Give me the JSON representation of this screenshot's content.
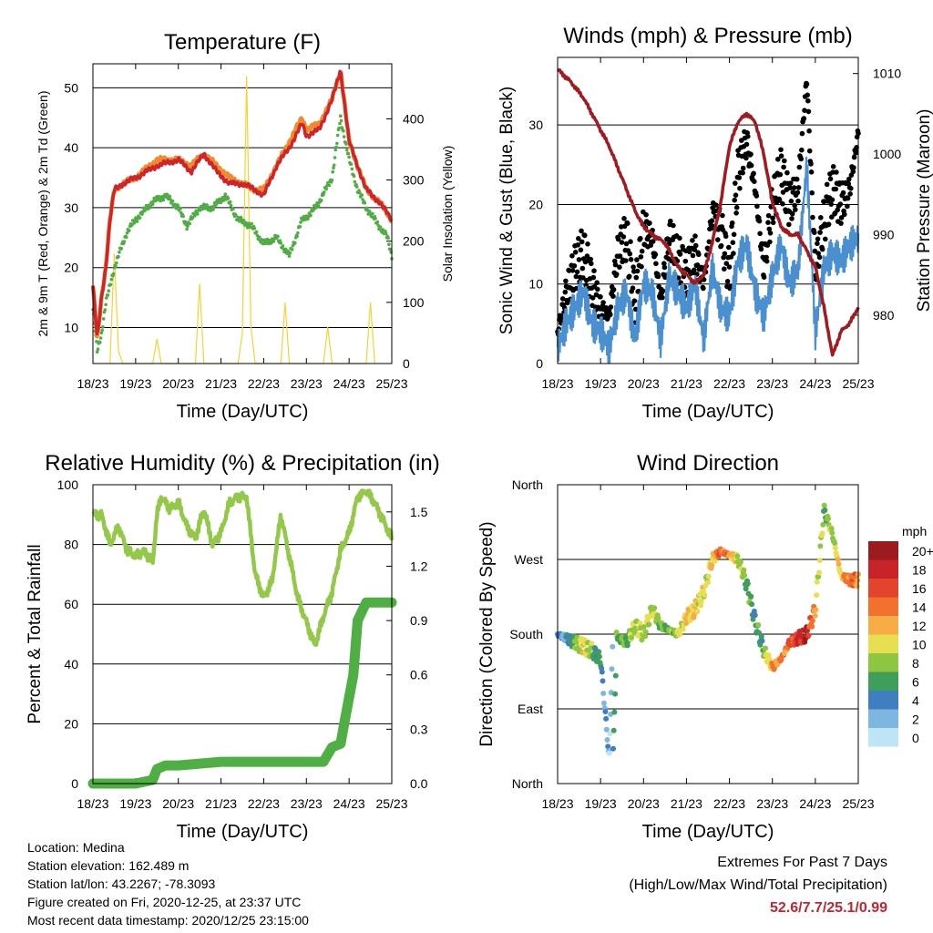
{
  "panels": {
    "temperature": {
      "title": "Temperature (F)",
      "ylabel": "2m & 9m T (Red, Orange) & 2m Td (Green)",
      "y2label": "Solar Insolation (Yellow)",
      "xlabel": "Time (Day/UTC)"
    },
    "winds": {
      "title": "Winds (mph) & Pressure (mb)",
      "ylabel": "Sonic Wind & Gust (Blue, Black)",
      "y2label": "Station Pressure (Maroon)",
      "xlabel": "Time (Day/UTC)"
    },
    "humidity": {
      "title": "Relative Humidity (%) & Precipitation (in)",
      "ylabel": "Percent & Total Rainfall",
      "xlabel": "Time (Day/UTC)"
    },
    "direction": {
      "title": "Wind Direction",
      "ylabel": "Direction (Colored By Speed)",
      "xlabel": "Time (Day/UTC)",
      "legend_title": "mph"
    }
  },
  "colors": {
    "temp_2m": "#d0242b",
    "temp_9m": "#f08a2c",
    "dewpoint": "#4fad44",
    "solar": "#f5d235",
    "wind": "#4a8fcf",
    "gust": "#000000",
    "pressure": "#a01a1f",
    "rh": "#94c849",
    "precip": "#4fae44"
  },
  "speed_legend": [
    {
      "label": "20+",
      "color": "#9b1b1e"
    },
    {
      "label": "18",
      "color": "#c9232a"
    },
    {
      "label": "16",
      "color": "#e4442b"
    },
    {
      "label": "14",
      "color": "#f2712f"
    },
    {
      "label": "12",
      "color": "#f8ac45"
    },
    {
      "label": "10",
      "color": "#e8df50"
    },
    {
      "label": "8",
      "color": "#8ec63f"
    },
    {
      "label": "6",
      "color": "#3e9e5a"
    },
    {
      "label": "4",
      "color": "#3f7ec1"
    },
    {
      "label": "2",
      "color": "#7eb6e2"
    },
    {
      "label": "0",
      "color": "#bfe4f5"
    }
  ],
  "footer": {
    "location": "Location: Medina",
    "elevation": "Station elevation: 162.489 m",
    "latlon": "Station lat/lon: 43.2267; -78.3093",
    "created": "Figure created on Fri, 2020-12-25, at 23:37 UTC",
    "recent": "Most recent data timestamp: 2020/12/25 23:15:00",
    "extremes_title": "Extremes For Past 7 Days",
    "extremes_sub": "(High/Low/Max Wind/Total Precipitation)",
    "extremes_values": "52.6/7.7/25.1/0.99"
  },
  "chart_data": [
    {
      "type": "line",
      "title": "Temperature (F)",
      "xlabel": "Time (Day/UTC)",
      "ylabel": "2m & 9m T (Red, Orange) & 2m Td (Green)",
      "y2label": "Solar Insolation (Yellow)",
      "x_ticks": [
        "18/23",
        "19/23",
        "20/23",
        "21/23",
        "22/23",
        "23/23",
        "24/23",
        "25/23"
      ],
      "y_ticks": [
        10,
        20,
        30,
        40,
        50
      ],
      "ylim": [
        4,
        54
      ],
      "y2_ticks": [
        0,
        100,
        200,
        300,
        400
      ],
      "y2lim": [
        0,
        490
      ],
      "xlim": [
        0,
        7
      ],
      "grid": "horizontal",
      "series": [
        {
          "axis": "y",
          "x": [
            0,
            0.1,
            0.2,
            0.3,
            0.4,
            0.5,
            0.7,
            1.0,
            1.5,
            2.0,
            2.3,
            2.6,
            2.9,
            3.2,
            3.5,
            3.8,
            4.0,
            4.3,
            4.6,
            4.9,
            5.0,
            5.3,
            5.6,
            5.8,
            6.0,
            6.2,
            6.4,
            6.7,
            6.9,
            7.0
          ],
          "y": [
            17,
            8,
            15,
            20,
            28,
            33,
            34,
            35,
            37,
            38,
            36,
            39,
            36,
            34,
            34,
            33,
            32,
            37,
            40,
            44,
            42,
            43,
            48,
            53,
            41,
            37,
            33,
            31,
            29,
            28
          ]
        },
        {
          "axis": "y",
          "x": [
            0,
            0.1,
            0.2,
            0.3,
            0.4,
            0.5,
            0.7,
            1.0,
            1.5,
            2.0,
            2.3,
            2.6,
            2.9,
            3.2,
            3.5,
            3.8,
            4.0,
            4.3,
            4.6,
            4.9,
            5.0,
            5.3,
            5.6,
            5.8,
            6.0,
            6.2,
            6.4,
            6.7,
            6.9,
            7.0
          ],
          "y": [
            17,
            8,
            15,
            20,
            28,
            33,
            34,
            35,
            38,
            38,
            37,
            39,
            37,
            35,
            34,
            33,
            33,
            37,
            41,
            45,
            43,
            44,
            48,
            53,
            41,
            37,
            33,
            31,
            29,
            28
          ]
        },
        {
          "axis": "y",
          "x": [
            0,
            0.1,
            0.2,
            0.3,
            0.5,
            0.8,
            1.0,
            1.4,
            1.7,
            2.0,
            2.2,
            2.5,
            2.8,
            3.1,
            3.4,
            3.7,
            4.0,
            4.3,
            4.6,
            4.9,
            5.1,
            5.3,
            5.6,
            5.8,
            6.0,
            6.2,
            6.4,
            6.7,
            6.9,
            7.0
          ],
          "y": [
            13,
            6,
            9,
            14,
            20,
            26,
            28,
            31,
            32,
            30,
            27,
            30,
            30,
            32,
            28,
            27,
            24,
            25,
            22,
            28,
            29,
            31,
            35,
            45,
            38,
            33,
            30,
            27,
            25,
            22
          ]
        },
        {
          "axis": "y2",
          "x": [
            0.4,
            0.5,
            0.6,
            0.7,
            1.4,
            1.5,
            1.6,
            2.4,
            2.5,
            2.6,
            3.4,
            3.5,
            3.6,
            3.7,
            3.8,
            4.4,
            4.5,
            4.6,
            5.4,
            5.5,
            5.6,
            6.4,
            6.5,
            6.6
          ],
          "y": [
            0,
            180,
            20,
            0,
            0,
            40,
            0,
            0,
            130,
            0,
            0,
            50,
            470,
            60,
            0,
            0,
            100,
            0,
            0,
            60,
            0,
            0,
            100,
            0
          ]
        }
      ]
    },
    {
      "type": "scatter",
      "title": "Winds (mph) & Pressure (mb)",
      "xlabel": "Time (Day/UTC)",
      "ylabel": "Sonic Wind & Gust (Blue, Black)",
      "y2label": "Station Pressure (Maroon)",
      "x_ticks": [
        "18/23",
        "19/23",
        "20/23",
        "21/23",
        "22/23",
        "23/23",
        "24/23",
        "25/23"
      ],
      "y_ticks": [
        0,
        10,
        20,
        30
      ],
      "ylim": [
        0,
        38.5
      ],
      "y2_ticks": [
        980,
        990,
        1000,
        1010
      ],
      "y2lim": [
        974,
        1012
      ],
      "xlim": [
        0,
        7
      ],
      "grid": "horizontal",
      "series": [
        {
          "axis": "y",
          "x": [
            0,
            0.2,
            0.4,
            0.6,
            0.8,
            1.0,
            1.2,
            1.4,
            1.6,
            1.8,
            2.0,
            2.2,
            2.4,
            2.6,
            2.8,
            3.0,
            3.2,
            3.4,
            3.6,
            3.8,
            4.0,
            4.2,
            4.4,
            4.6,
            4.8,
            5.0,
            5.2,
            5.4,
            5.6,
            5.8,
            6.0,
            6.2,
            6.4,
            6.6,
            6.8,
            7.0
          ],
          "y": [
            2,
            5,
            7,
            9,
            5,
            4,
            2,
            7,
            9,
            3,
            10,
            9,
            3,
            11,
            9,
            7,
            10,
            3,
            12,
            7,
            6,
            13,
            15,
            9,
            6,
            11,
            15,
            10,
            12,
            25,
            4,
            12,
            14,
            13,
            15,
            16
          ]
        },
        {
          "axis": "y",
          "x": [
            0,
            0.2,
            0.4,
            0.6,
            0.8,
            1.0,
            1.2,
            1.4,
            1.6,
            1.8,
            2.0,
            2.2,
            2.4,
            2.6,
            2.8,
            3.0,
            3.2,
            3.4,
            3.6,
            3.8,
            4.0,
            4.2,
            4.4,
            4.6,
            4.8,
            5.0,
            5.2,
            5.4,
            5.6,
            5.8,
            6.0,
            6.2,
            6.4,
            6.6,
            6.8,
            7.0
          ],
          "y": [
            4,
            9,
            12,
            14,
            10,
            7,
            6,
            14,
            16,
            8,
            17,
            16,
            8,
            16,
            13,
            11,
            14,
            10,
            19,
            17,
            11,
            24,
            28,
            22,
            12,
            20,
            24,
            20,
            22,
            36,
            12,
            18,
            22,
            20,
            22,
            29
          ]
        },
        {
          "axis": "y2",
          "x": [
            0,
            0.3,
            0.6,
            0.9,
            1.2,
            1.5,
            1.8,
            2.0,
            2.2,
            2.5,
            2.8,
            3.0,
            3.2,
            3.4,
            3.6,
            3.8,
            4.0,
            4.2,
            4.4,
            4.6,
            4.8,
            5.0,
            5.2,
            5.4,
            5.6,
            5.8,
            6.0,
            6.2,
            6.4,
            6.6,
            6.8,
            7.0
          ],
          "y": [
            1010.5,
            1009,
            1007,
            1004,
            1001,
            997,
            993,
            991,
            990,
            989,
            986,
            985,
            984,
            985,
            989,
            994,
            1001,
            1004,
            1005,
            1004,
            1000,
            994,
            991,
            990,
            990,
            988,
            986,
            981,
            975,
            978,
            979,
            981
          ]
        }
      ]
    },
    {
      "type": "line",
      "title": "Relative Humidity (%) & Precipitation (in)",
      "xlabel": "Time (Day/UTC)",
      "ylabel": "Percent & Total Rainfall",
      "x_ticks": [
        "18/23",
        "19/23",
        "20/23",
        "21/23",
        "22/23",
        "23/23",
        "24/23",
        "25/23"
      ],
      "y_ticks": [
        0,
        20,
        40,
        60,
        80,
        100
      ],
      "ylim": [
        0,
        100
      ],
      "y2_ticks": [
        "0.0",
        "0.3",
        "0.6",
        "0.9",
        "1.2",
        "1.5"
      ],
      "y2lim": [
        0,
        1.65
      ],
      "xlim": [
        0,
        7
      ],
      "grid": "horizontal",
      "series": [
        {
          "axis": "y",
          "x": [
            0,
            0.2,
            0.4,
            0.6,
            0.8,
            1.0,
            1.2,
            1.4,
            1.5,
            1.6,
            1.8,
            2.0,
            2.2,
            2.4,
            2.6,
            2.8,
            3.0,
            3.2,
            3.4,
            3.6,
            3.8,
            4.0,
            4.2,
            4.4,
            4.6,
            4.8,
            5.0,
            5.2,
            5.4,
            5.6,
            5.8,
            6.0,
            6.2,
            6.4,
            6.6,
            6.8,
            7.0
          ],
          "y": [
            90,
            90,
            80,
            86,
            78,
            76,
            78,
            74,
            90,
            96,
            92,
            94,
            86,
            82,
            92,
            80,
            84,
            94,
            96,
            96,
            70,
            62,
            68,
            90,
            76,
            62,
            54,
            46,
            56,
            64,
            78,
            84,
            96,
            98,
            94,
            88,
            82
          ]
        },
        {
          "axis": "y2",
          "x": [
            0,
            0.5,
            1.0,
            1.4,
            1.5,
            1.7,
            2.0,
            2.5,
            3.0,
            3.5,
            4.0,
            4.5,
            5.0,
            5.4,
            5.6,
            5.8,
            5.9,
            6.1,
            6.2,
            6.4,
            6.6,
            6.8,
            7.0
          ],
          "y": [
            0.0,
            0.0,
            0.0,
            0.02,
            0.08,
            0.1,
            0.1,
            0.11,
            0.12,
            0.12,
            0.12,
            0.12,
            0.12,
            0.12,
            0.2,
            0.22,
            0.35,
            0.6,
            0.9,
            1.0,
            1.0,
            1.0,
            1.0
          ]
        }
      ]
    },
    {
      "type": "scatter",
      "title": "Wind Direction",
      "xlabel": "Time (Day/UTC)",
      "ylabel": "Direction (Colored By Speed)",
      "x_ticks": [
        "18/23",
        "19/23",
        "20/23",
        "21/23",
        "22/23",
        "23/23",
        "24/23",
        "25/23"
      ],
      "y_ticks": [
        "North",
        "East",
        "South",
        "West",
        "North"
      ],
      "ylim": [
        0,
        360
      ],
      "xlim": [
        0,
        7
      ],
      "grid": "horizontal",
      "series": [
        {
          "name": "Wind Direction",
          "x": [
            0,
            0.2,
            0.4,
            0.6,
            0.8,
            1.0,
            1.2,
            1.3,
            1.4,
            1.6,
            1.8,
            2.0,
            2.2,
            2.4,
            2.6,
            2.8,
            3.0,
            3.2,
            3.4,
            3.6,
            3.8,
            4.0,
            4.2,
            4.4,
            4.6,
            4.8,
            5.0,
            5.2,
            5.4,
            5.6,
            5.8,
            6.0,
            6.2,
            6.4,
            6.6,
            6.8,
            7.0
          ],
          "y": [
            180,
            175,
            170,
            165,
            160,
            150,
            30,
            200,
            175,
            170,
            190,
            180,
            210,
            190,
            185,
            180,
            200,
            210,
            230,
            270,
            280,
            275,
            270,
            240,
            195,
            160,
            140,
            150,
            170,
            175,
            180,
            210,
            330,
            300,
            250,
            245,
            245
          ],
          "speed": [
            4,
            4,
            8,
            12,
            8,
            6,
            2,
            6,
            8,
            8,
            10,
            10,
            10,
            8,
            8,
            10,
            12,
            12,
            10,
            12,
            16,
            14,
            10,
            8,
            6,
            8,
            14,
            14,
            16,
            18,
            20,
            12,
            8,
            10,
            12,
            16,
            14
          ]
        }
      ]
    }
  ]
}
